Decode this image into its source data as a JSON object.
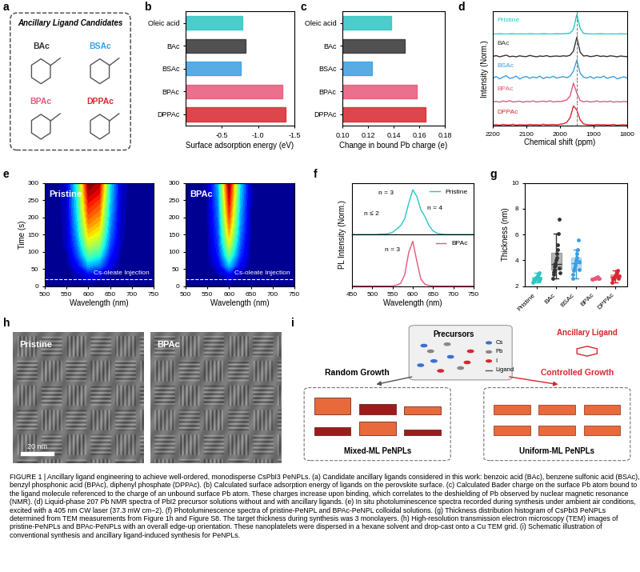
{
  "panel_labels": [
    "a",
    "b",
    "c",
    "d",
    "e",
    "f",
    "g",
    "h",
    "i"
  ],
  "ligand_box": {
    "title": "Ancillary Ligand Candidates",
    "ligands": [
      {
        "name": "BAc",
        "color": "#333333"
      },
      {
        "name": "BSAc",
        "color": "#3a9ee0"
      },
      {
        "name": "BPAc",
        "color": "#e8577a"
      },
      {
        "name": "DPPAc",
        "color": "#d9262e"
      }
    ]
  },
  "chart_data": [
    {
      "type": "bar",
      "orientation": "horizontal",
      "categories": [
        "Oleic acid",
        "BAc",
        "BSAc",
        "BPAc",
        "DPPAc"
      ],
      "values": [
        -0.78,
        -0.83,
        -0.76,
        -1.33,
        -1.38
      ],
      "colors": [
        "#2ec4c4",
        "#333333",
        "#3a9ee0",
        "#e8577a",
        "#d9262e"
      ],
      "xlabel": "Surface adsorption energy (eV)",
      "xlim": [
        0,
        -1.5
      ],
      "xticks": [
        -0.5,
        -1.0,
        -1.5
      ]
    },
    {
      "type": "bar",
      "orientation": "horizontal",
      "categories": [
        "Oleic acid",
        "BAc",
        "BSAc",
        "BPAc",
        "DPPAc"
      ],
      "values": [
        0.138,
        0.149,
        0.123,
        0.158,
        0.165
      ],
      "colors": [
        "#2ec4c4",
        "#333333",
        "#3a9ee0",
        "#e8577a",
        "#d9262e"
      ],
      "xlabel": "Change in bound Pb charge (e)",
      "xlim": [
        0.1,
        0.18
      ],
      "xticks": [
        {
          "value": 0.1,
          "label": "0.10"
        },
        {
          "value": 0.12,
          "label": "0.12"
        },
        {
          "value": 0.14,
          "label": "0.14"
        },
        {
          "value": 0.16,
          "label": "0.16"
        },
        {
          "value": 0.18,
          "label": "0.18"
        }
      ]
    },
    {
      "type": "line",
      "xlabel": "Chemical shift (ppm)",
      "ylabel": "Intensity (Norm.)",
      "xlim": [
        2200,
        1800
      ],
      "xticks": [
        2200,
        2100,
        2000,
        1900,
        1800
      ],
      "ylim": [
        0,
        1.15
      ],
      "yticks": [],
      "tick_labels": "x",
      "reference_x": 1950,
      "x": [
        2200,
        2190,
        2180,
        2170,
        2160,
        2150,
        2140,
        2130,
        2120,
        2110,
        2100,
        2090,
        2080,
        2070,
        2060,
        2050,
        2040,
        2030,
        2020,
        2010,
        2000,
        1990,
        1980,
        1970,
        1960,
        1950,
        1940,
        1930,
        1920,
        1910,
        1900,
        1890,
        1880,
        1870,
        1860,
        1850,
        1840,
        1830,
        1820,
        1810,
        1800
      ],
      "series": [
        {
          "name": "Pristine",
          "color": "#2ec4c4",
          "values": [
            0.02,
            0.01,
            0.03,
            0.02,
            0.01,
            0.02,
            0.03,
            0.01,
            0.02,
            0.02,
            0.01,
            0.03,
            0.02,
            0.01,
            0.02,
            0.03,
            0.02,
            0.01,
            0.02,
            0.03,
            0.02,
            0.03,
            0.04,
            0.06,
            0.25,
            1.0,
            0.3,
            0.05,
            0.03,
            0.02,
            0.01,
            0.02,
            0.03,
            0.02,
            0.01,
            0.02,
            0.02,
            0.01,
            0.03,
            0.02,
            0.01
          ]
        },
        {
          "name": "BAc",
          "color": "#333333",
          "values": [
            0.04,
            0.08,
            0.02,
            0.06,
            0.1,
            0.03,
            0.05,
            0.02,
            0.07,
            0.04,
            0.03,
            0.09,
            0.05,
            0.02,
            0.06,
            0.04,
            0.08,
            0.03,
            0.05,
            0.06,
            0.04,
            0.07,
            0.05,
            0.1,
            0.3,
            1.0,
            0.25,
            0.06,
            0.08,
            0.03,
            0.05,
            0.09,
            0.04,
            0.06,
            0.03,
            0.07,
            0.05,
            0.02,
            0.06,
            0.04,
            0.03
          ]
        },
        {
          "name": "BSAc",
          "color": "#3a9ee0",
          "values": [
            0.1,
            0.18,
            0.06,
            0.15,
            0.22,
            0.08,
            0.12,
            0.2,
            0.05,
            0.14,
            0.18,
            0.09,
            0.16,
            0.11,
            0.2,
            0.07,
            0.15,
            0.12,
            0.19,
            0.1,
            0.14,
            0.17,
            0.12,
            0.2,
            0.45,
            1.0,
            0.35,
            0.15,
            0.1,
            0.18,
            0.08,
            0.16,
            0.12,
            0.2,
            0.09,
            0.14,
            0.18,
            0.06,
            0.12,
            0.16,
            0.1
          ]
        },
        {
          "name": "BPAc",
          "color": "#e8577a",
          "values": [
            0.05,
            0.08,
            0.04,
            0.1,
            0.06,
            0.12,
            0.05,
            0.07,
            0.09,
            0.04,
            0.08,
            0.06,
            0.1,
            0.05,
            0.07,
            0.09,
            0.06,
            0.11,
            0.05,
            0.08,
            0.07,
            0.1,
            0.15,
            0.35,
            1.0,
            0.5,
            0.12,
            0.06,
            0.09,
            0.05,
            0.07,
            0.1,
            0.05,
            0.08,
            0.06,
            0.09,
            0.04,
            0.07,
            0.05,
            0.08,
            0.06
          ]
        },
        {
          "name": "DPPAc",
          "color": "#d9262e",
          "values": [
            0.04,
            0.06,
            0.03,
            0.07,
            0.05,
            0.04,
            0.08,
            0.03,
            0.06,
            0.05,
            0.04,
            0.07,
            0.05,
            0.06,
            0.04,
            0.08,
            0.05,
            0.06,
            0.07,
            0.05,
            0.08,
            0.1,
            0.18,
            0.4,
            1.0,
            0.8,
            0.3,
            0.1,
            0.06,
            0.05,
            0.04,
            0.07,
            0.05,
            0.06,
            0.04,
            0.05,
            0.07,
            0.03,
            0.05,
            0.06,
            0.04
          ]
        }
      ]
    },
    {
      "type": "heatmap",
      "title": "Pristine",
      "xlabel": "Wavelength (nm)",
      "ylabel": "Time (s)",
      "annotation": "Cs-oleate Injection",
      "injection_time": 20,
      "xlim": [
        500,
        750
      ],
      "xticks": [
        500,
        550,
        600,
        650,
        700,
        750
      ],
      "ylim": [
        0,
        300
      ],
      "yticks": [
        0,
        50,
        100,
        150,
        200,
        250,
        300
      ],
      "x": [
        500,
        525,
        550,
        575,
        600,
        625,
        650,
        675,
        700,
        725,
        750
      ],
      "y": [
        0,
        30,
        60,
        90,
        120,
        150,
        180,
        210,
        240,
        270,
        300
      ],
      "cells": [
        [
          0,
          0,
          0,
          0,
          0,
          0,
          0,
          0,
          0,
          0,
          0
        ],
        [
          0,
          0,
          0,
          0.05,
          0.1,
          0.08,
          0.03,
          0,
          0,
          0,
          0
        ],
        [
          0,
          0,
          0.02,
          0.12,
          0.3,
          0.25,
          0.1,
          0.02,
          0,
          0,
          0
        ],
        [
          0,
          0,
          0.03,
          0.2,
          0.45,
          0.4,
          0.15,
          0.03,
          0,
          0,
          0
        ],
        [
          0,
          0,
          0.05,
          0.25,
          0.58,
          0.52,
          0.2,
          0.04,
          0,
          0,
          0
        ],
        [
          0,
          0,
          0.05,
          0.3,
          0.68,
          0.62,
          0.24,
          0.05,
          0,
          0,
          0
        ],
        [
          0,
          0,
          0.06,
          0.33,
          0.76,
          0.7,
          0.27,
          0.05,
          0,
          0,
          0
        ],
        [
          0,
          0,
          0.06,
          0.36,
          0.83,
          0.77,
          0.3,
          0.06,
          0,
          0,
          0
        ],
        [
          0,
          0,
          0.07,
          0.38,
          0.89,
          0.83,
          0.32,
          0.06,
          0,
          0,
          0
        ],
        [
          0,
          0,
          0.07,
          0.4,
          0.95,
          0.9,
          0.34,
          0.07,
          0,
          0,
          0
        ],
        [
          0,
          0,
          0.08,
          0.42,
          1.0,
          0.95,
          0.36,
          0.07,
          0,
          0,
          0
        ]
      ]
    },
    {
      "type": "heatmap",
      "title": "BPAc",
      "xlabel": "Wavelength (nm)",
      "annotation": "Cs-oleate Injection",
      "injection_time": 20,
      "xlim": [
        500,
        750
      ],
      "xticks": [
        500,
        550,
        600,
        650,
        700,
        750
      ],
      "ylim": [
        0,
        300
      ],
      "yticks": [
        0,
        50,
        100,
        150,
        200,
        250,
        300
      ],
      "x": [
        500,
        525,
        550,
        575,
        600,
        625,
        650,
        675,
        700,
        725,
        750
      ],
      "y": [
        0,
        30,
        60,
        90,
        120,
        150,
        180,
        210,
        240,
        270,
        300
      ],
      "cells": [
        [
          0,
          0,
          0,
          0,
          0,
          0,
          0,
          0,
          0,
          0,
          0
        ],
        [
          0,
          0,
          0,
          0.03,
          0.1,
          0.04,
          0,
          0,
          0,
          0,
          0
        ],
        [
          0,
          0,
          0.01,
          0.1,
          0.32,
          0.12,
          0.01,
          0,
          0,
          0,
          0
        ],
        [
          0,
          0,
          0.02,
          0.15,
          0.48,
          0.18,
          0.02,
          0,
          0,
          0,
          0
        ],
        [
          0,
          0,
          0.02,
          0.18,
          0.6,
          0.22,
          0.02,
          0,
          0,
          0,
          0
        ],
        [
          0,
          0,
          0.02,
          0.2,
          0.7,
          0.25,
          0.03,
          0,
          0,
          0,
          0
        ],
        [
          0,
          0,
          0.03,
          0.22,
          0.78,
          0.28,
          0.03,
          0,
          0,
          0,
          0
        ],
        [
          0,
          0,
          0.03,
          0.24,
          0.85,
          0.3,
          0.03,
          0,
          0,
          0,
          0
        ],
        [
          0,
          0,
          0.03,
          0.26,
          0.9,
          0.32,
          0.04,
          0,
          0,
          0,
          0
        ],
        [
          0,
          0,
          0.04,
          0.28,
          0.95,
          0.34,
          0.04,
          0,
          0,
          0,
          0
        ],
        [
          0,
          0,
          0.04,
          0.3,
          1.0,
          0.35,
          0.04,
          0,
          0,
          0,
          0
        ]
      ]
    },
    {
      "type": "line",
      "xlabel": "Wavelength (nm)",
      "ylabel": "PL Intensity (Norm.)",
      "xlim": [
        450,
        750
      ],
      "xticks": [
        450,
        500,
        550,
        600,
        650,
        700,
        750
      ],
      "ylim": [
        0,
        1.15
      ],
      "yticks": [],
      "tick_labels": "x",
      "legend": "upper right",
      "x": [
        450,
        460,
        470,
        480,
        490,
        500,
        510,
        520,
        530,
        540,
        550,
        560,
        570,
        580,
        590,
        600,
        610,
        620,
        630,
        640,
        650,
        660,
        670,
        680,
        690,
        700,
        710,
        720,
        730,
        740,
        750
      ],
      "series": [
        {
          "name": "Pristine",
          "color": "#2ec4c4",
          "annotations": [
            "n ≤ 2",
            "n = 3",
            "n = 4"
          ],
          "values": [
            0,
            0,
            0,
            0,
            0,
            0,
            0,
            0.01,
            0.01,
            0.02,
            0.05,
            0.12,
            0.2,
            0.35,
            0.7,
            1.0,
            0.85,
            0.55,
            0.4,
            0.2,
            0.08,
            0.03,
            0.01,
            0,
            0,
            0,
            0,
            0,
            0,
            0,
            0
          ]
        },
        {
          "name": "BPAc",
          "color": "#e8577a",
          "annotations": [
            "n = 3"
          ],
          "values": [
            0,
            0,
            0,
            0,
            0,
            0,
            0,
            0,
            0,
            0,
            0,
            0.02,
            0.06,
            0.25,
            0.75,
            1.0,
            0.55,
            0.15,
            0.04,
            0.01,
            0,
            0,
            0,
            0,
            0,
            0,
            0,
            0,
            0,
            0,
            0
          ]
        }
      ]
    },
    {
      "type": "box",
      "categories": [
        "Pristine",
        "BAc",
        "BSAc",
        "BPAc",
        "DPPAc"
      ],
      "colors": [
        "#2ec4c4",
        "#333333",
        "#3a9ee0",
        "#e8577a",
        "#d9262e"
      ],
      "ylabel": "Thickness (nm)",
      "ylim": [
        2,
        10
      ],
      "yticks": [
        2,
        4,
        6,
        8,
        10
      ],
      "values": [
        [
          2.3,
          2.4,
          2.5,
          2.5,
          2.6,
          2.6,
          2.7,
          2.7,
          2.8,
          2.9,
          3.0,
          2.4,
          2.6
        ],
        [
          2.6,
          2.9,
          3.1,
          3.3,
          3.5,
          3.6,
          3.8,
          4.0,
          4.2,
          4.5,
          4.8,
          5.2,
          6.1,
          7.2,
          3.4,
          3.0
        ],
        [
          2.6,
          2.9,
          3.2,
          3.4,
          3.6,
          3.8,
          4.0,
          4.2,
          4.5,
          4.8,
          5.6,
          3.3,
          3.9
        ],
        [
          2.5,
          2.55,
          2.6,
          2.6,
          2.65,
          2.7,
          2.6,
          2.58
        ],
        [
          2.3,
          2.5,
          2.6,
          2.7,
          2.8,
          2.9,
          3.0,
          3.2,
          2.6,
          2.75
        ]
      ]
    }
  ],
  "tem_images": {
    "labels": [
      "Pristine",
      "BPAc"
    ],
    "scale_bar": "20 nm"
  },
  "schematic": {
    "precursors": "Precursors",
    "species": [
      "Cs",
      "Pb",
      "I",
      "Ligand"
    ],
    "ancillary": "Ancillary Ligand",
    "left_title": "Random Growth",
    "right_title": "Controlled Growth",
    "left_product": "Mixed-ML PeNPLs",
    "right_product": "Uniform-ML PeNPLs"
  },
  "caption": "FIGURE 1 | Ancillary ligand engineering to achieve well-ordered, monodisperse CsPbI3 PeNPLs. (a) Candidate ancillary ligands considered in this work: benzoic acid (BAc), benzene sulfonic acid (BSAc), benzyl phosphonic acid (BPAc), diphenyl phosphate (DPPAc). (b) Calculated surface adsorption energy of ligands on the perovskite surface. (c) Calculated Bader charge on the surface Pb atom bound to the ligand molecule referenced to the charge of an unbound surface Pb atom. These charges increase upon binding, which correlates to the deshielding of Pb observed by nuclear magnetic resonance (NMR). (d) Liquid-phase 207 Pb NMR spectra of PbI2 precursor solutions without and with ancillary ligands. (e) In situ photoluminescence spectra recorded during synthesis under ambient air conditions, excited with a 405 nm CW laser (37.3 mW cm−2). (f) Photoluminescence spectra of pristine-PeNPL and BPAc-PeNPL colloidal solutions. (g) Thickness distribution histogram of CsPbI3 PeNPLs determined from TEM measurements from Figure 1h and Figure S8. The target thickness during synthesis was 3 monolayers. (h) High-resolution transmission electron microscopy (TEM) images of pristine-PeNPLs and BPAc-PeNPLs with an overall edge-up orientation. These nanoplatelets were dispersed in a hexane solvent and drop-cast onto a Cu TEM grid. (i) Schematic illustration of conventional synthesis and ancillary ligand-induced synthesis for PeNPLs."
}
